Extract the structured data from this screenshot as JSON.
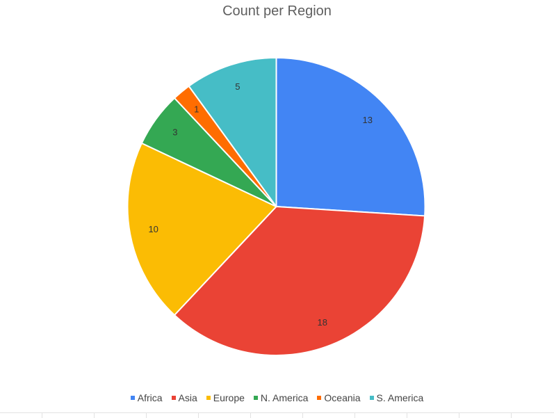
{
  "chart_data": {
    "type": "pie",
    "title": "Count per Region",
    "categories": [
      "Africa",
      "Asia",
      "Europe",
      "N. America",
      "Oceania",
      "S. America"
    ],
    "values": [
      13,
      18,
      10,
      3,
      1,
      5
    ],
    "colors": [
      "#4285f4",
      "#ea4335",
      "#fbbc04",
      "#34a853",
      "#ff6d01",
      "#46bdc6"
    ],
    "data_labels": [
      "13",
      "18",
      "10",
      "3",
      "1",
      "5"
    ],
    "legend_position": "bottom",
    "start_angle": "top",
    "direction": "clockwise"
  }
}
